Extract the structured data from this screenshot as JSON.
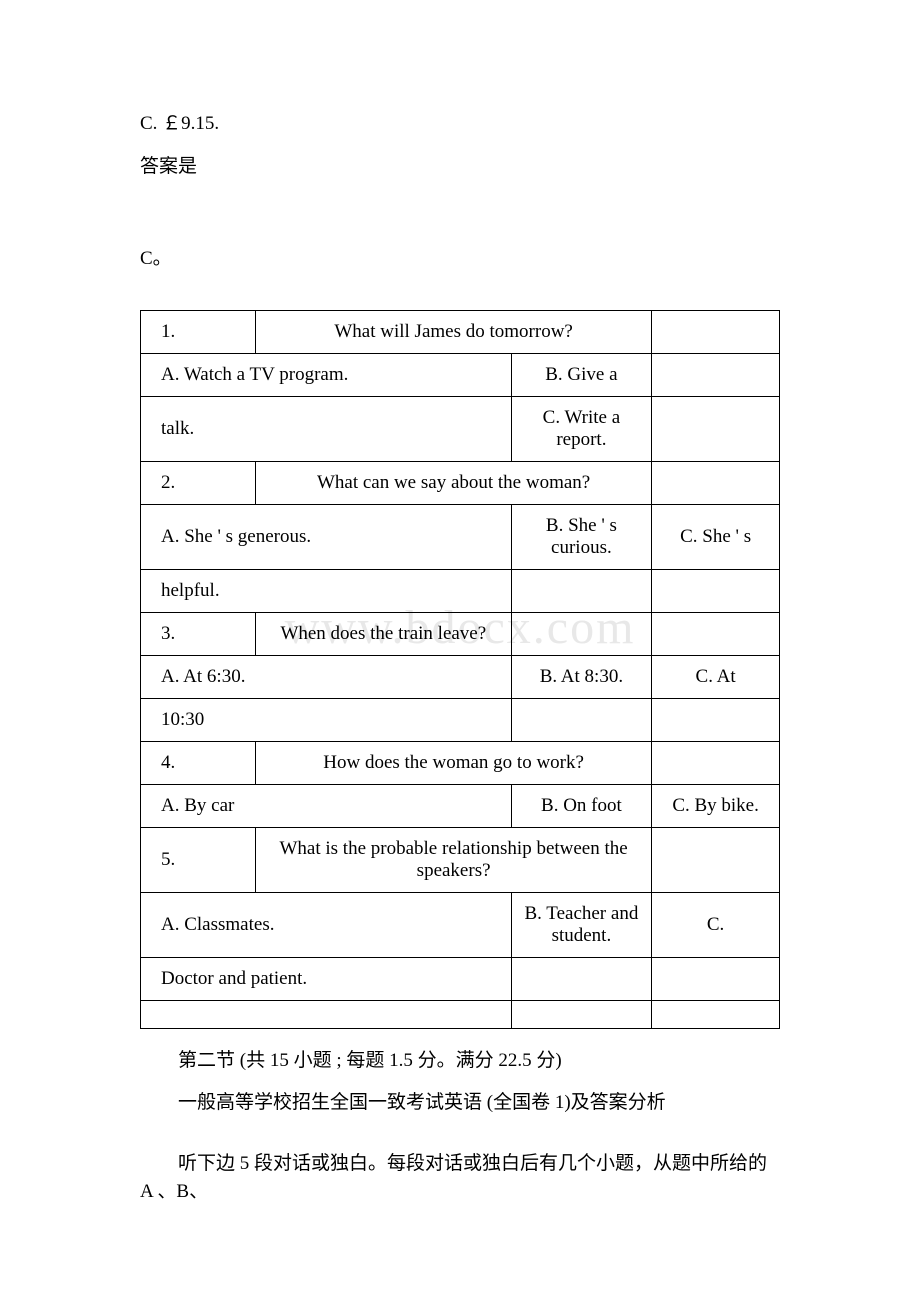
{
  "watermark": "www.bdocx.com",
  "top": {
    "line1": "C. ￡9.15.",
    "line2": "答案是",
    "line3": "C。"
  },
  "table": {
    "rows": [
      {
        "a": "1.",
        "bc": "What will James do tomorrow?",
        "d": ""
      },
      {
        "ab": "A. Watch a TV program.",
        "c": "B. Give a",
        "d": ""
      },
      {
        "ab": "talk.",
        "c": "C. Write a report.",
        "d": ""
      },
      {
        "a": "2.",
        "bc": "What can we say about the woman?",
        "d": ""
      },
      {
        "ab": "A. She ' s generous.",
        "c": "B. She ' s curious.",
        "d": "C. She ' s"
      },
      {
        "ab": "helpful.",
        "c": "",
        "d": ""
      },
      {
        "a": "3.",
        "b": "When does the train leave?",
        "c": "",
        "d": ""
      },
      {
        "ab": "A. At 6:30.",
        "c": "B. At 8:30.",
        "d": "C. At"
      },
      {
        "ab": "10:30",
        "c": "",
        "d": ""
      },
      {
        "a": "4.",
        "bc": "How does the woman go to work?",
        "d": ""
      },
      {
        "ab": "A. By car",
        "c": "B. On foot",
        "d": "C. By bike."
      },
      {
        "a": "5.",
        "bc": "What is the probable relationship between the speakers?",
        "d": ""
      },
      {
        "ab": "A. Classmates.",
        "c": "B. Teacher and student.",
        "d": "C."
      },
      {
        "ab": "Doctor and patient.",
        "c": "",
        "d": ""
      }
    ]
  },
  "bottom": {
    "p1": "第二节 (共 15 小题 ; 每题 1.5 分。满分 22.5 分)",
    "p2": "一般高等学校招生全国一致考试英语 (全国卷 1)及答案分析",
    "p3": "听下边 5 段对话或独白。每段对话或独白后有几个小题，从题中所给的 A 、B、"
  },
  "colors": {
    "text": "#000000",
    "background": "#ffffff",
    "watermark": "#e8e8e8",
    "border": "#000000"
  },
  "typography": {
    "body_fontsize": 19,
    "watermark_fontsize": 48,
    "font_family": "Times New Roman"
  }
}
